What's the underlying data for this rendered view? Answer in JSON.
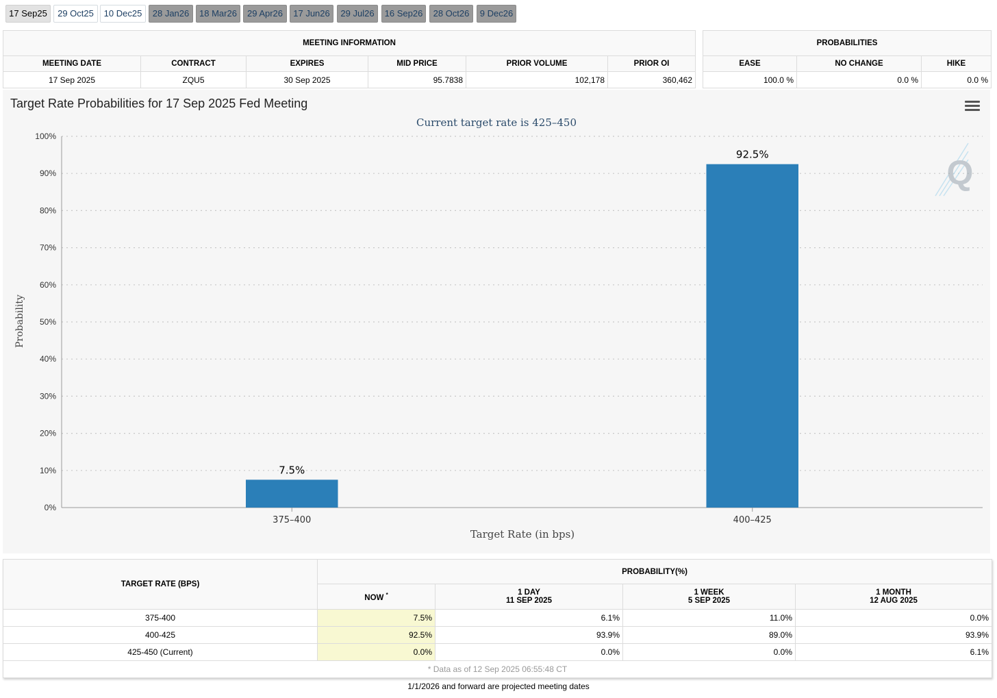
{
  "tabs": [
    {
      "label": "17 Sep25",
      "state": "active"
    },
    {
      "label": "29 Oct25",
      "state": "future"
    },
    {
      "label": "10 Dec25",
      "state": "future"
    },
    {
      "label": "28 Jan26",
      "state": "projected"
    },
    {
      "label": "18 Mar26",
      "state": "projected"
    },
    {
      "label": "29 Apr26",
      "state": "projected"
    },
    {
      "label": "17 Jun26",
      "state": "projected"
    },
    {
      "label": "29 Jul26",
      "state": "projected"
    },
    {
      "label": "16 Sep26",
      "state": "projected"
    },
    {
      "label": "28 Oct26",
      "state": "projected"
    },
    {
      "label": "9 Dec26",
      "state": "projected"
    }
  ],
  "meeting_info": {
    "title": "MEETING INFORMATION",
    "headers": [
      "MEETING DATE",
      "CONTRACT",
      "EXPIRES",
      "MID PRICE",
      "PRIOR VOLUME",
      "PRIOR OI"
    ],
    "values": [
      "17 Sep 2025",
      "ZQU5",
      "30 Sep 2025",
      "95.7838",
      "102,178",
      "360,462"
    ]
  },
  "probabilities": {
    "title": "PROBABILITIES",
    "headers": [
      "EASE",
      "NO CHANGE",
      "HIKE"
    ],
    "values": [
      "100.0 %",
      "0.0 %",
      "0.0 %"
    ]
  },
  "chart_data": {
    "type": "bar",
    "title": "Target Rate Probabilities for 17 Sep 2025 Fed Meeting",
    "subtitle": "Current target rate is 425–450",
    "xlabel": "Target Rate (in bps)",
    "ylabel": "Probability",
    "categories": [
      "375–400",
      "400–425"
    ],
    "values": [
      7.5,
      92.5
    ],
    "data_labels": [
      "7.5%",
      "92.5%"
    ],
    "ylim": [
      0,
      100
    ],
    "yticks": [
      "0%",
      "10%",
      "20%",
      "30%",
      "40%",
      "50%",
      "60%",
      "70%",
      "80%",
      "90%",
      "100%"
    ],
    "bar_color": "#2b7fb8",
    "grid": "dotted horizontal",
    "logo_letter": "Q"
  },
  "bottom_table": {
    "col_target": "TARGET RATE (BPS)",
    "col_prob": "PROBABILITY(%)",
    "sub_now": "NOW",
    "sub_now_mark": "*",
    "sub_1day": "1 DAY",
    "sub_1day_date": "11 SEP 2025",
    "sub_1week": "1 WEEK",
    "sub_1week_date": "5 SEP 2025",
    "sub_1month": "1 MONTH",
    "sub_1month_date": "12 AUG 2025",
    "rows": [
      {
        "rate": "375-400",
        "now": "7.5%",
        "day": "6.1%",
        "week": "11.0%",
        "month": "0.0%"
      },
      {
        "rate": "400-425",
        "now": "92.5%",
        "day": "93.9%",
        "week": "89.0%",
        "month": "93.9%"
      },
      {
        "rate": "425-450 (Current)",
        "now": "0.0%",
        "day": "0.0%",
        "week": "0.0%",
        "month": "6.1%"
      }
    ],
    "footnote": "* Data as of 12 Sep 2025 06:55:48 CT"
  },
  "bottom_note": "1/1/2026 and forward are projected meeting dates"
}
